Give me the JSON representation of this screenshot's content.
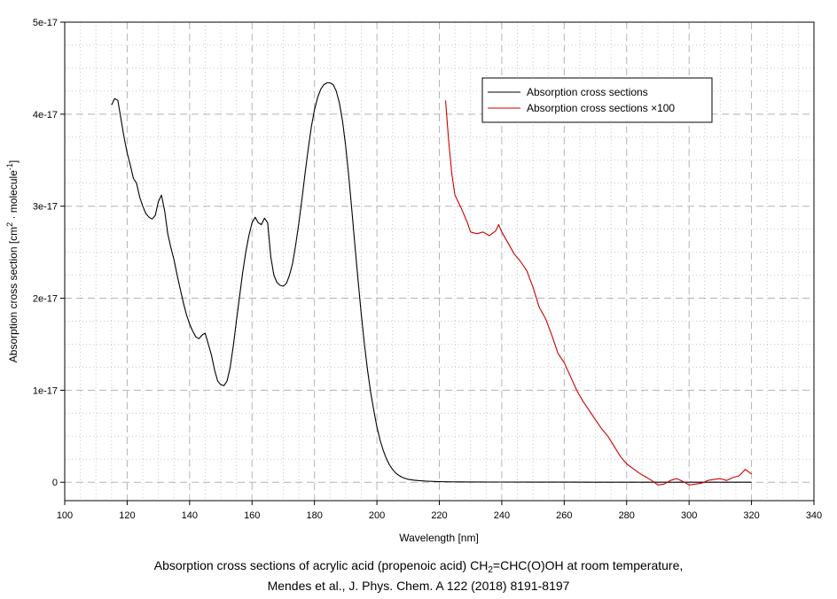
{
  "chart_data": {
    "type": "line",
    "xlabel": "Wavelength [nm]",
    "ylabel": {
      "prefix": "Absorption cross section [cm",
      "sup1": "2",
      "middle": " · molecule",
      "sup2": "-1",
      "suffix": "]"
    },
    "xlim": [
      100,
      340
    ],
    "ylim": [
      -2e-18,
      5e-17
    ],
    "xticks": [
      100,
      120,
      140,
      160,
      180,
      200,
      220,
      240,
      260,
      280,
      300,
      320,
      340
    ],
    "yticks": [
      {
        "value": 0,
        "label": "0"
      },
      {
        "value": 1e-17,
        "label": "1e-17"
      },
      {
        "value": 2e-17,
        "label": "2e-17"
      },
      {
        "value": 3e-17,
        "label": "3e-17"
      },
      {
        "value": 4e-17,
        "label": "4e-17"
      },
      {
        "value": 5e-17,
        "label": "5e-17"
      }
    ],
    "grid": true,
    "legend_position": "top-right",
    "series": [
      {
        "name": "Absorption cross sections",
        "color": "#000000",
        "x": [
          115,
          116,
          117,
          118,
          119,
          120,
          121,
          122,
          123,
          124,
          125,
          126,
          127,
          128,
          129,
          130,
          131,
          132,
          133,
          134,
          135,
          136,
          137,
          138,
          139,
          140,
          141,
          142,
          143,
          144,
          145,
          146,
          147,
          148,
          149,
          150,
          151,
          152,
          153,
          154,
          155,
          156,
          157,
          158,
          159,
          160,
          161,
          162,
          163,
          164,
          165,
          166,
          167,
          168,
          169,
          170,
          171,
          172,
          173,
          174,
          175,
          176,
          177,
          178,
          179,
          180,
          181,
          182,
          183,
          184,
          185,
          186,
          187,
          188,
          189,
          190,
          191,
          192,
          193,
          194,
          195,
          196,
          197,
          198,
          199,
          200,
          201,
          202,
          203,
          204,
          205,
          206,
          207,
          208,
          209,
          210,
          212,
          214,
          216,
          218,
          220,
          222,
          225,
          230,
          240,
          250,
          260,
          270,
          280,
          290,
          300,
          310,
          320
        ],
        "y": [
          4.1e-17,
          4.17e-17,
          4.15e-17,
          3.95e-17,
          3.75e-17,
          3.58e-17,
          3.45e-17,
          3.3e-17,
          3.25e-17,
          3.1e-17,
          3e-17,
          2.92e-17,
          2.88e-17,
          2.86e-17,
          2.9e-17,
          3.05e-17,
          3.12e-17,
          2.95e-17,
          2.7e-17,
          2.55e-17,
          2.42e-17,
          2.25e-17,
          2.1e-17,
          1.95e-17,
          1.82e-17,
          1.72e-17,
          1.64e-17,
          1.58e-17,
          1.56e-17,
          1.6e-17,
          1.62e-17,
          1.5e-17,
          1.38e-17,
          1.22e-17,
          1.1e-17,
          1.06e-17,
          1.05e-17,
          1.1e-17,
          1.25e-17,
          1.48e-17,
          1.75e-17,
          2.02e-17,
          2.28e-17,
          2.5e-17,
          2.68e-17,
          2.82e-17,
          2.88e-17,
          2.82e-17,
          2.8e-17,
          2.87e-17,
          2.82e-17,
          2.45e-17,
          2.25e-17,
          2.17e-17,
          2.14e-17,
          2.13e-17,
          2.16e-17,
          2.25e-17,
          2.38e-17,
          2.58e-17,
          2.82e-17,
          3.08e-17,
          3.36e-17,
          3.62e-17,
          3.86e-17,
          4.05e-17,
          4.18e-17,
          4.27e-17,
          4.32e-17,
          4.34e-17,
          4.34e-17,
          4.32e-17,
          4.25e-17,
          4.12e-17,
          3.92e-17,
          3.65e-17,
          3.32e-17,
          2.95e-17,
          2.56e-17,
          2.18e-17,
          1.82e-17,
          1.5e-17,
          1.22e-17,
          9.8e-18,
          7.8e-18,
          6e-18,
          4.6e-18,
          3.5e-18,
          2.6e-18,
          1.9e-18,
          1.4e-18,
          1e-18,
          7.5e-19,
          5.5e-19,
          4.2e-19,
          3.2e-19,
          2.2e-19,
          1.6e-19,
          1.2e-19,
          9e-20,
          7e-20,
          5e-20,
          4e-20,
          3e-20,
          2.5e-20,
          1.5e-20,
          8e-21,
          4e-21,
          2e-21,
          1e-21,
          1e-21,
          1e-21,
          1e-21
        ]
      },
      {
        "name": "Absorption cross sections ×100",
        "color": "#cc0000",
        "x": [
          222,
          223,
          224,
          225,
          226,
          227,
          228,
          229,
          230,
          232,
          234,
          236,
          238,
          239,
          240,
          242,
          244,
          246,
          248,
          250,
          252,
          254,
          256,
          258,
          260,
          262,
          264,
          266,
          268,
          270,
          272,
          274,
          276,
          278,
          280,
          282,
          284,
          286,
          288,
          290,
          292,
          294,
          296,
          298,
          300,
          302,
          304,
          306,
          308,
          310,
          312,
          314,
          316,
          318,
          320
        ],
        "y": [
          4.15e-17,
          3.7e-17,
          3.35e-17,
          3.12e-17,
          3.05e-17,
          2.98e-17,
          2.9e-17,
          2.82e-17,
          2.72e-17,
          2.7e-17,
          2.72e-17,
          2.68e-17,
          2.73e-17,
          2.8e-17,
          2.72e-17,
          2.6e-17,
          2.48e-17,
          2.4e-17,
          2.3e-17,
          2.12e-17,
          1.9e-17,
          1.78e-17,
          1.6e-17,
          1.4e-17,
          1.3e-17,
          1.15e-17,
          1e-17,
          8.8e-18,
          7.8e-18,
          6.8e-18,
          5.8e-18,
          5e-18,
          3.9e-18,
          2.8e-18,
          2e-18,
          1.5e-18,
          1e-18,
          6e-19,
          2e-19,
          -3e-19,
          -2e-19,
          2e-19,
          4e-19,
          1e-19,
          -3e-19,
          -2e-19,
          -1e-19,
          2e-19,
          3e-19,
          4e-19,
          2e-19,
          5e-19,
          7e-19,
          1.4e-18,
          9e-19
        ]
      }
    ]
  },
  "caption": {
    "line1_before": "Absorption cross sections of acrylic acid (propenoic acid) CH",
    "line1_sub": "2",
    "line1_after": "=CHC(O)OH at room temperature,",
    "line2": "Mendes et al., J. Phys. Chem. A 122 (2018) 8191-8197"
  }
}
